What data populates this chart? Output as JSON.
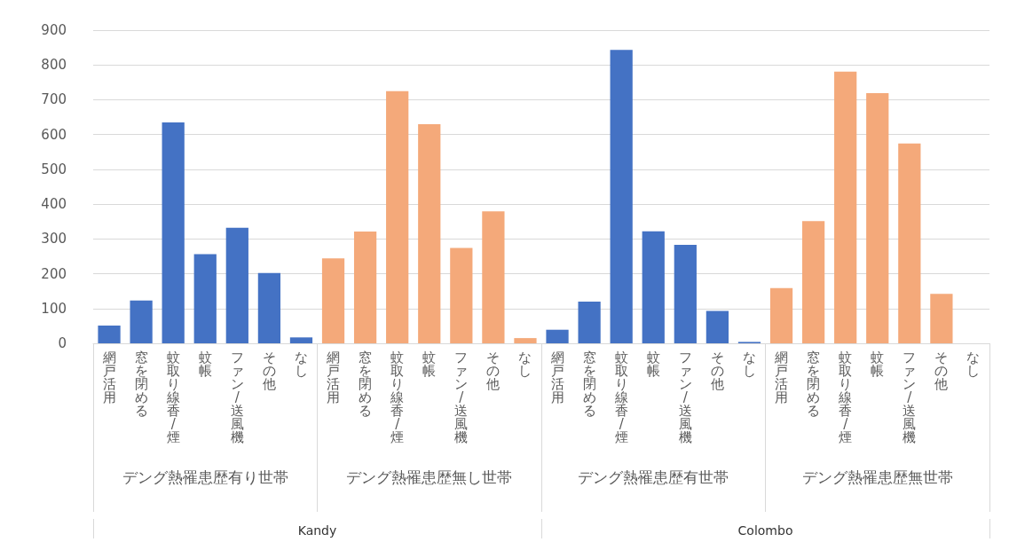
{
  "chart_data": {
    "type": "bar",
    "categories": [
      "網戸活用",
      "窓を閉める",
      "蚊取り線香/煙",
      "蚊帳",
      "ファン/送風機",
      "その他",
      "なし",
      "網戸活用",
      "窓を閉める",
      "蚊取り線香/煙",
      "蚊帳",
      "ファン/送風機",
      "その他",
      "なし",
      "網戸活用",
      "窓を閉める",
      "蚊取り線香/煙",
      "蚊帳",
      "ファン/送風機",
      "その他",
      "なし",
      "網戸活用",
      "窓を閉める",
      "蚊取り線香/煙",
      "蚊帳",
      "ファン/送風機",
      "その他",
      "なし"
    ],
    "values": [
      51,
      123,
      635,
      256,
      332,
      202,
      17,
      244,
      321,
      725,
      630,
      274,
      379,
      15,
      39,
      120,
      843,
      322,
      283,
      93,
      4,
      159,
      351,
      781,
      719,
      574,
      142,
      0
    ],
    "colors": [
      "#4472c4",
      "#4472c4",
      "#4472c4",
      "#4472c4",
      "#4472c4",
      "#4472c4",
      "#4472c4",
      "#f4a97a",
      "#f4a97a",
      "#f4a97a",
      "#f4a97a",
      "#f4a97a",
      "#f4a97a",
      "#f4a97a",
      "#4472c4",
      "#4472c4",
      "#4472c4",
      "#4472c4",
      "#4472c4",
      "#4472c4",
      "#4472c4",
      "#f4a97a",
      "#f4a97a",
      "#f4a97a",
      "#f4a97a",
      "#f4a97a",
      "#f4a97a",
      "#f4a97a"
    ],
    "annotations": [
      "デング熱罹患歴有り世帯",
      "デング熱罹患歴無し世帯",
      "デング熱罹患歴有世帯",
      "デング熱罹患歴無世帯",
      "Kandy",
      "Colombo"
    ],
    "ylim": [
      0,
      900
    ],
    "yticks": [
      0,
      100,
      200,
      300,
      400,
      500,
      600,
      700,
      800,
      900
    ],
    "grid": "y"
  }
}
